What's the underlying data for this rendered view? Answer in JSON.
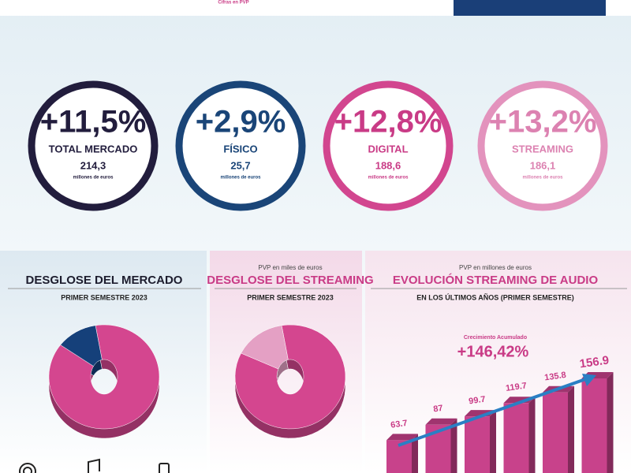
{
  "header": {
    "note": "Cifras en PVP"
  },
  "kpis": [
    {
      "change": "+11,5%",
      "label": "TOTAL MERCADO",
      "value": "214,3",
      "unit": "millones de euros",
      "color": "#221d3d",
      "text_color": "#221d3d"
    },
    {
      "change": "+2,9%",
      "label": "FÍSICO",
      "value": "25,7",
      "unit": "millones de euros",
      "color": "#1a4578",
      "text_color": "#1a4578"
    },
    {
      "change": "+12,8%",
      "label": "DIGITAL",
      "value": "188,6",
      "unit": "millones de euros",
      "color": "#d2468f",
      "text_color": "#c93b86"
    },
    {
      "change": "+13,2%",
      "label": "STREAMING",
      "value": "186,1",
      "unit": "millones de euros",
      "color": "#e393bd",
      "text_color": "#dc82b1"
    }
  ],
  "chart_data": [
    {
      "type": "pie",
      "title": "DESGLOSE DEL MERCADO",
      "subtitle": "PRIMER SEMESTRE 2023",
      "values": [
        88,
        12
      ],
      "colors": [
        "#d4468f",
        "#15407a"
      ]
    },
    {
      "type": "pie",
      "note": "PVP en miles de euros",
      "title": "DESGLOSE DEL STREAMING",
      "subtitle": "PRIMER SEMESTRE 2023",
      "values": [
        85,
        15
      ],
      "colors": [
        "#d4468f",
        "#e4a0c4"
      ]
    },
    {
      "type": "bar",
      "note": "PVP en millones de euros",
      "title": "EVOLUCIÓN STREAMING DE AUDIO",
      "subtitle": "EN LOS ÚLTIMOS AÑOS (PRIMER SEMESTRE)",
      "annotation": {
        "label": "Crecimiento Acumulado",
        "value": "+146,42%"
      },
      "values": [
        63.7,
        87,
        99.7,
        119.7,
        135.8,
        156.9
      ],
      "color": "#c8428b"
    }
  ]
}
